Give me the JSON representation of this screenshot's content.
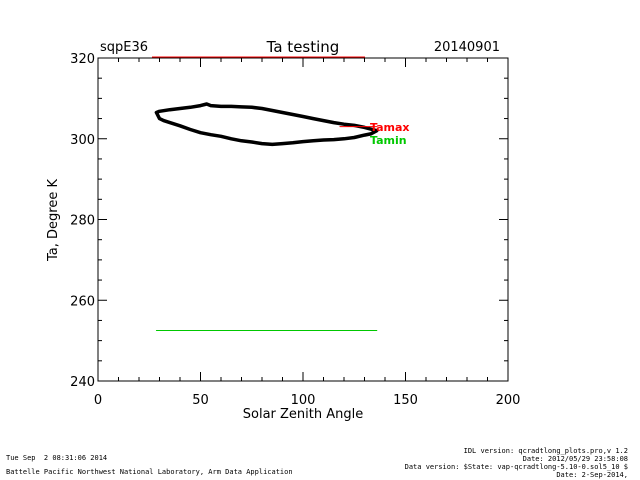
{
  "header": {
    "site": "sqpE36",
    "title": "Ta testing",
    "date": "20140901"
  },
  "chart_data": {
    "type": "line",
    "title": "Ta testing",
    "xlabel": "Solar Zenith Angle",
    "ylabel": "Ta, Degree K",
    "xlim": [
      0,
      200
    ],
    "ylim": [
      240,
      320
    ],
    "xticks": [
      "0",
      "50",
      "100",
      "150",
      "200"
    ],
    "yticks": [
      "240",
      "260",
      "280",
      "300",
      "320"
    ],
    "legend": [
      {
        "name": "Tamax",
        "color": "#ff0000"
      },
      {
        "name": "Tamin",
        "color": "#00c800"
      }
    ],
    "series": [
      {
        "name": "Ta",
        "color": "#000000",
        "x": [
          28.5,
          30,
          35,
          40,
          45,
          50,
          53,
          55,
          60,
          65,
          70,
          75,
          80,
          85,
          90,
          95,
          100,
          105,
          110,
          115,
          120,
          125,
          130,
          133,
          136,
          133,
          130,
          125,
          120,
          115,
          110,
          105,
          100,
          95,
          90,
          85,
          80,
          75,
          70,
          65,
          60,
          55,
          50,
          45,
          40,
          35,
          32,
          30,
          28.5
        ],
        "y": [
          306.5,
          306.8,
          307.2,
          307.5,
          307.8,
          308.2,
          308.6,
          308.2,
          308.0,
          308.0,
          307.9,
          307.8,
          307.5,
          307.0,
          306.5,
          306.0,
          305.5,
          305.0,
          304.5,
          304.0,
          303.6,
          303.3,
          302.8,
          302.4,
          302.0,
          301.2,
          300.9,
          300.3,
          300.0,
          299.8,
          299.7,
          299.5,
          299.3,
          299.0,
          298.8,
          298.6,
          298.8,
          299.2,
          299.5,
          300.0,
          300.6,
          301.0,
          301.5,
          302.3,
          303.2,
          304.0,
          304.5,
          305.0,
          306.5
        ]
      },
      {
        "name": "Tamax",
        "color": "#ff0000",
        "x": [
          118,
          136
        ],
        "y": [
          303,
          303
        ]
      },
      {
        "name": "Tamin",
        "color": "#00c800",
        "x": [
          28.5,
          136
        ],
        "y": [
          252.5,
          252.5
        ]
      }
    ]
  },
  "footer": {
    "timestamp": "Tue Sep  2 08:31:06 2014",
    "lab": "Battelle Pacific Northwest National Laboratory, Arm Data Application",
    "idl_version": "IDL version: qcradtlong_plots.pro,v 1.2",
    "idl_date": "Date: 2012/05/29 23:58:08",
    "data_version": "Data version: $State: vap-qcradtlong-5.10-0.sol5_10 $",
    "data_date": "Date: 2-Sep-2014,"
  }
}
